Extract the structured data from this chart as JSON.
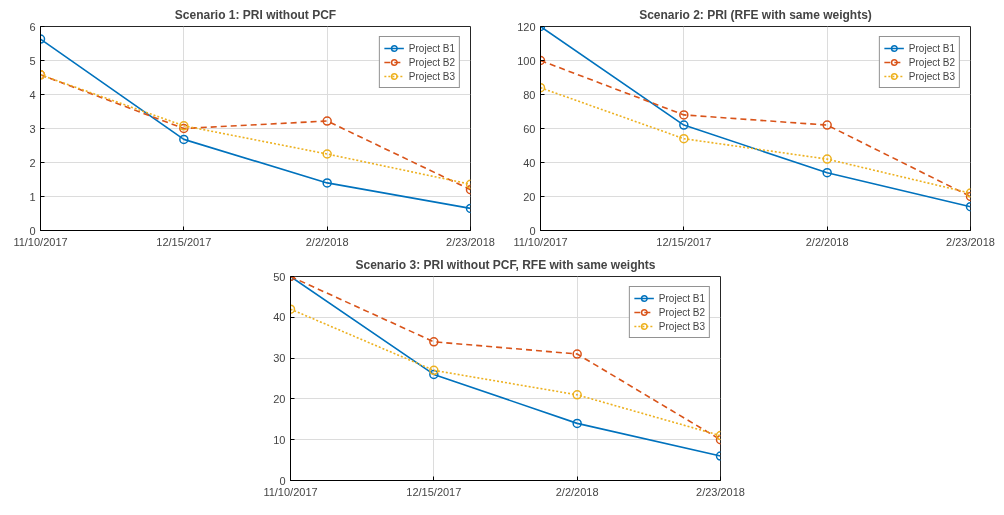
{
  "chart_data": [
    {
      "type": "line",
      "title": "Scenario 1: PRI without PCF",
      "categories": [
        "11/10/2017",
        "12/15/2017",
        "2/2/2018",
        "2/23/2018"
      ],
      "ylim": [
        0,
        6
      ],
      "yticks": [
        0,
        1,
        2,
        3,
        4,
        5,
        6
      ],
      "grid": true,
      "legend": "top right",
      "marker": "circle",
      "series": [
        {
          "name": "Project B1",
          "color": "#0072bd",
          "line_style": "solid",
          "values": [
            5.63,
            2.68,
            1.4,
            0.65
          ]
        },
        {
          "name": "Project B2",
          "color": "#d95319",
          "line_style": "dashed",
          "values": [
            4.58,
            3.0,
            3.22,
            1.2
          ]
        },
        {
          "name": "Project B3",
          "color": "#edb120",
          "line_style": "dotted",
          "values": [
            4.58,
            3.08,
            2.25,
            1.36
          ]
        }
      ]
    },
    {
      "type": "line",
      "title": "Scenario 2: PRI (RFE with same weights)",
      "categories": [
        "11/10/2017",
        "12/15/2017",
        "2/2/2018",
        "2/23/2018"
      ],
      "ylim": [
        0,
        120
      ],
      "yticks": [
        0,
        20,
        40,
        60,
        80,
        100,
        120
      ],
      "grid": true,
      "legend": "top right",
      "marker": "circle",
      "series": [
        {
          "name": "Project B1",
          "color": "#0072bd",
          "line_style": "solid",
          "values": [
            120,
            62,
            34,
            14
          ]
        },
        {
          "name": "Project B2",
          "color": "#d95319",
          "line_style": "dashed",
          "values": [
            100,
            68,
            62,
            20
          ]
        },
        {
          "name": "Project B3",
          "color": "#edb120",
          "line_style": "dotted",
          "values": [
            84,
            54,
            42,
            22
          ]
        }
      ]
    },
    {
      "type": "line",
      "title": "Scenario 3: PRI without PCF, RFE with same weights",
      "categories": [
        "11/10/2017",
        "12/15/2017",
        "2/2/2018",
        "2/23/2018"
      ],
      "ylim": [
        0,
        50
      ],
      "yticks": [
        0,
        10,
        20,
        30,
        40,
        50
      ],
      "grid": true,
      "legend": "top right",
      "marker": "circle",
      "series": [
        {
          "name": "Project B1",
          "color": "#0072bd",
          "line_style": "solid",
          "values": [
            50,
            26,
            14,
            6
          ]
        },
        {
          "name": "Project B2",
          "color": "#d95319",
          "line_style": "dashed",
          "values": [
            50,
            34,
            31,
            10
          ]
        },
        {
          "name": "Project B3",
          "color": "#edb120",
          "line_style": "dotted",
          "values": [
            42,
            27,
            21,
            11
          ]
        }
      ]
    }
  ]
}
